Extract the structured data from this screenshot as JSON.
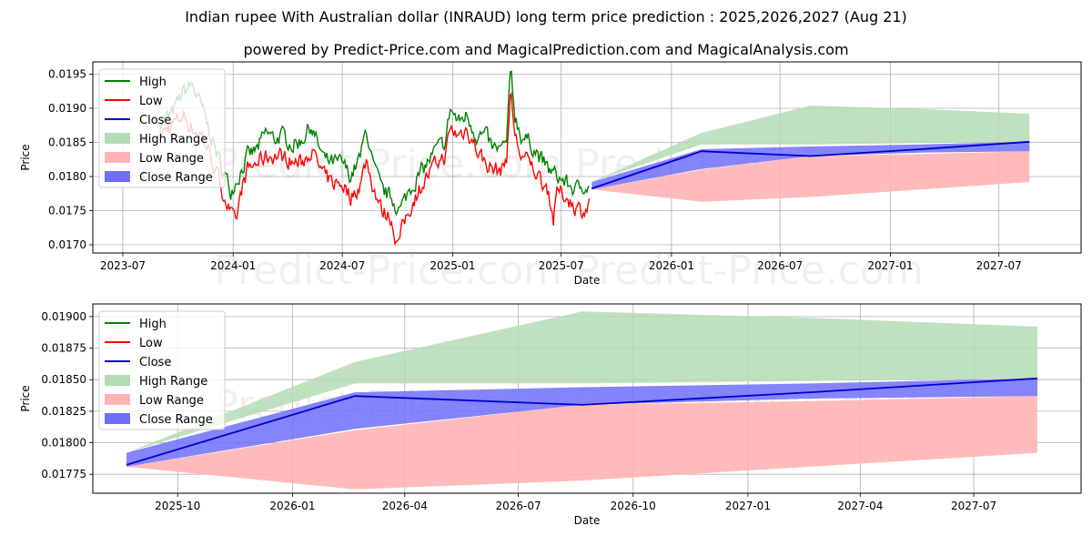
{
  "page": {
    "title": "Indian rupee With Australian dollar (INRAUD) long term price prediction : 2025,2026,2027 (Aug 21)",
    "subtitle": "powered by Predict-Price.com and MagicalPrediction.com and MagicalAnalysis.com",
    "watermark": "Predict-Price.com"
  },
  "colors": {
    "high": "#008000",
    "low": "#ff0000",
    "close": "#0000cc",
    "high_range": "#b4dcb4",
    "low_range": "#ffb4b4",
    "close_range": "#6e6efa"
  },
  "chart_data": [
    {
      "type": "line",
      "id": "top",
      "xlabel": "Date",
      "ylabel": "Price",
      "xlim": [
        "2023-05-12",
        "2027-11-15"
      ],
      "ylim": [
        0.01688,
        0.01968
      ],
      "xticks": [
        "2023-07",
        "2024-01",
        "2024-07",
        "2025-01",
        "2025-07",
        "2026-01",
        "2026-07",
        "2027-01",
        "2027-07"
      ],
      "yticks": [
        "0.0170",
        "0.0175",
        "0.0180",
        "0.0185",
        "0.0190",
        "0.0195"
      ],
      "legend": [
        "High",
        "Low",
        "Close",
        "High Range",
        "Low Range",
        "Close Range"
      ],
      "legend_position": "upper-left",
      "history": {
        "high_anchors": [
          [
            "2023-09-01",
            0.0188
          ],
          [
            "2023-09-20",
            0.0189
          ],
          [
            "2023-10-10",
            0.01925
          ],
          [
            "2023-10-25",
            0.01935
          ],
          [
            "2023-11-10",
            0.019
          ],
          [
            "2023-11-25",
            0.0186
          ],
          [
            "2023-12-10",
            0.0182
          ],
          [
            "2023-12-28",
            0.0178
          ],
          [
            "2024-01-10",
            0.018
          ],
          [
            "2024-01-25",
            0.0183
          ],
          [
            "2024-02-10",
            0.0184
          ],
          [
            "2024-02-25",
            0.01865
          ],
          [
            "2024-03-10",
            0.01855
          ],
          [
            "2024-03-25",
            0.0186
          ],
          [
            "2024-04-10",
            0.01845
          ],
          [
            "2024-04-25",
            0.01855
          ],
          [
            "2024-05-10",
            0.01875
          ],
          [
            "2024-05-20",
            0.0185
          ],
          [
            "2024-06-01",
            0.01825
          ],
          [
            "2024-06-15",
            0.0182
          ],
          [
            "2024-07-01",
            0.0182
          ],
          [
            "2024-07-15",
            0.018
          ],
          [
            "2024-08-01",
            0.0183
          ],
          [
            "2024-08-10",
            0.01872
          ],
          [
            "2024-08-20",
            0.0182
          ],
          [
            "2024-09-05",
            0.0178
          ],
          [
            "2024-09-20",
            0.0177
          ],
          [
            "2024-10-05",
            0.0175
          ],
          [
            "2024-10-20",
            0.0178
          ],
          [
            "2024-11-05",
            0.018
          ],
          [
            "2024-11-20",
            0.0182
          ],
          [
            "2024-12-05",
            0.0184
          ],
          [
            "2024-12-20",
            0.0185
          ],
          [
            "2024-12-28",
            0.019
          ],
          [
            "2025-01-10",
            0.0188
          ],
          [
            "2025-01-25",
            0.0189
          ],
          [
            "2025-02-10",
            0.0186
          ],
          [
            "2025-02-25",
            0.0186
          ],
          [
            "2025-03-10",
            0.0184
          ],
          [
            "2025-03-25",
            0.0184
          ],
          [
            "2025-04-01",
            0.0185
          ],
          [
            "2025-04-08",
            0.01958
          ],
          [
            "2025-04-15",
            0.0189
          ],
          [
            "2025-04-25",
            0.0186
          ],
          [
            "2025-05-10",
            0.0185
          ],
          [
            "2025-05-25",
            0.0183
          ],
          [
            "2025-06-10",
            0.0181
          ],
          [
            "2025-06-25",
            0.018
          ],
          [
            "2025-07-10",
            0.0179
          ],
          [
            "2025-07-25",
            0.0178
          ],
          [
            "2025-08-10",
            0.0179
          ],
          [
            "2025-08-18",
            0.0178
          ]
        ],
        "low_anchors": [
          [
            "2023-09-01",
            0.0186
          ],
          [
            "2023-09-20",
            0.01875
          ],
          [
            "2023-10-10",
            0.0189
          ],
          [
            "2023-10-25",
            0.0187
          ],
          [
            "2023-11-10",
            0.0186
          ],
          [
            "2023-11-25",
            0.0183
          ],
          [
            "2023-12-10",
            0.0179
          ],
          [
            "2023-12-28",
            0.01745
          ],
          [
            "2024-01-05",
            0.0173
          ],
          [
            "2024-01-15",
            0.0178
          ],
          [
            "2024-01-25",
            0.0181
          ],
          [
            "2024-02-10",
            0.0182
          ],
          [
            "2024-02-25",
            0.0183
          ],
          [
            "2024-03-10",
            0.0183
          ],
          [
            "2024-03-25",
            0.0183
          ],
          [
            "2024-04-10",
            0.0182
          ],
          [
            "2024-04-25",
            0.0182
          ],
          [
            "2024-05-10",
            0.0184
          ],
          [
            "2024-05-20",
            0.0182
          ],
          [
            "2024-06-01",
            0.018
          ],
          [
            "2024-06-15",
            0.0179
          ],
          [
            "2024-07-01",
            0.0179
          ],
          [
            "2024-07-15",
            0.0177
          ],
          [
            "2024-08-01",
            0.0179
          ],
          [
            "2024-08-10",
            0.01825
          ],
          [
            "2024-08-20",
            0.0179
          ],
          [
            "2024-09-05",
            0.0175
          ],
          [
            "2024-09-20",
            0.0174
          ],
          [
            "2024-10-01",
            0.017
          ],
          [
            "2024-10-15",
            0.0174
          ],
          [
            "2024-11-05",
            0.0178
          ],
          [
            "2024-11-20",
            0.018
          ],
          [
            "2024-12-05",
            0.0182
          ],
          [
            "2024-12-20",
            0.0183
          ],
          [
            "2024-12-28",
            0.0187
          ],
          [
            "2025-01-10",
            0.0186
          ],
          [
            "2025-01-25",
            0.0187
          ],
          [
            "2025-02-10",
            0.0184
          ],
          [
            "2025-02-25",
            0.0182
          ],
          [
            "2025-03-10",
            0.0181
          ],
          [
            "2025-03-25",
            0.0181
          ],
          [
            "2025-04-01",
            0.0183
          ],
          [
            "2025-04-08",
            0.01925
          ],
          [
            "2025-04-15",
            0.0186
          ],
          [
            "2025-04-25",
            0.0183
          ],
          [
            "2025-05-10",
            0.0182
          ],
          [
            "2025-05-25",
            0.018
          ],
          [
            "2025-06-10",
            0.0178
          ],
          [
            "2025-06-18",
            0.01735
          ],
          [
            "2025-06-25",
            0.0178
          ],
          [
            "2025-07-10",
            0.0177
          ],
          [
            "2025-07-25",
            0.01755
          ],
          [
            "2025-08-10",
            0.0175
          ],
          [
            "2025-08-18",
            0.0176
          ]
        ]
      }
    },
    {
      "type": "line",
      "id": "bottom",
      "xlabel": "Date",
      "ylabel": "Price",
      "xlim": [
        "2025-07-25",
        "2027-09-25"
      ],
      "ylim": [
        0.0176,
        0.0191
      ],
      "xticks": [
        "2025-10",
        "2026-01",
        "2026-04",
        "2026-07",
        "2026-10",
        "2027-01",
        "2027-04",
        "2027-07"
      ],
      "yticks": [
        "0.01775",
        "0.01800",
        "0.01825",
        "0.01850",
        "0.01875",
        "0.01900"
      ],
      "legend": [
        "High",
        "Low",
        "Close",
        "High Range",
        "Low Range",
        "Close Range"
      ],
      "legend_position": "upper-left"
    }
  ],
  "forecast": {
    "dates": [
      "2025-08-21",
      "2026-02-20",
      "2026-08-21",
      "2027-02-20",
      "2027-08-21"
    ],
    "close": [
      0.017825,
      0.01837,
      0.0183,
      0.0184,
      0.01851
    ],
    "high_range": [
      [
        0.01792,
        0.01792
      ],
      [
        0.01847,
        0.01864
      ],
      [
        0.01847,
        0.01904
      ],
      [
        0.01849,
        0.01899
      ],
      [
        0.01851,
        0.01892
      ]
    ],
    "low_range": [
      [
        0.01781,
        0.01781
      ],
      [
        0.01763,
        0.0181
      ],
      [
        0.0177,
        0.0183
      ],
      [
        0.01781,
        0.01833
      ],
      [
        0.01792,
        0.01837
      ]
    ],
    "close_range": [
      [
        0.01781,
        0.01792
      ],
      [
        0.01811,
        0.0184
      ],
      [
        0.0183,
        0.01844
      ],
      [
        0.01835,
        0.01847
      ],
      [
        0.01837,
        0.01851
      ]
    ]
  }
}
